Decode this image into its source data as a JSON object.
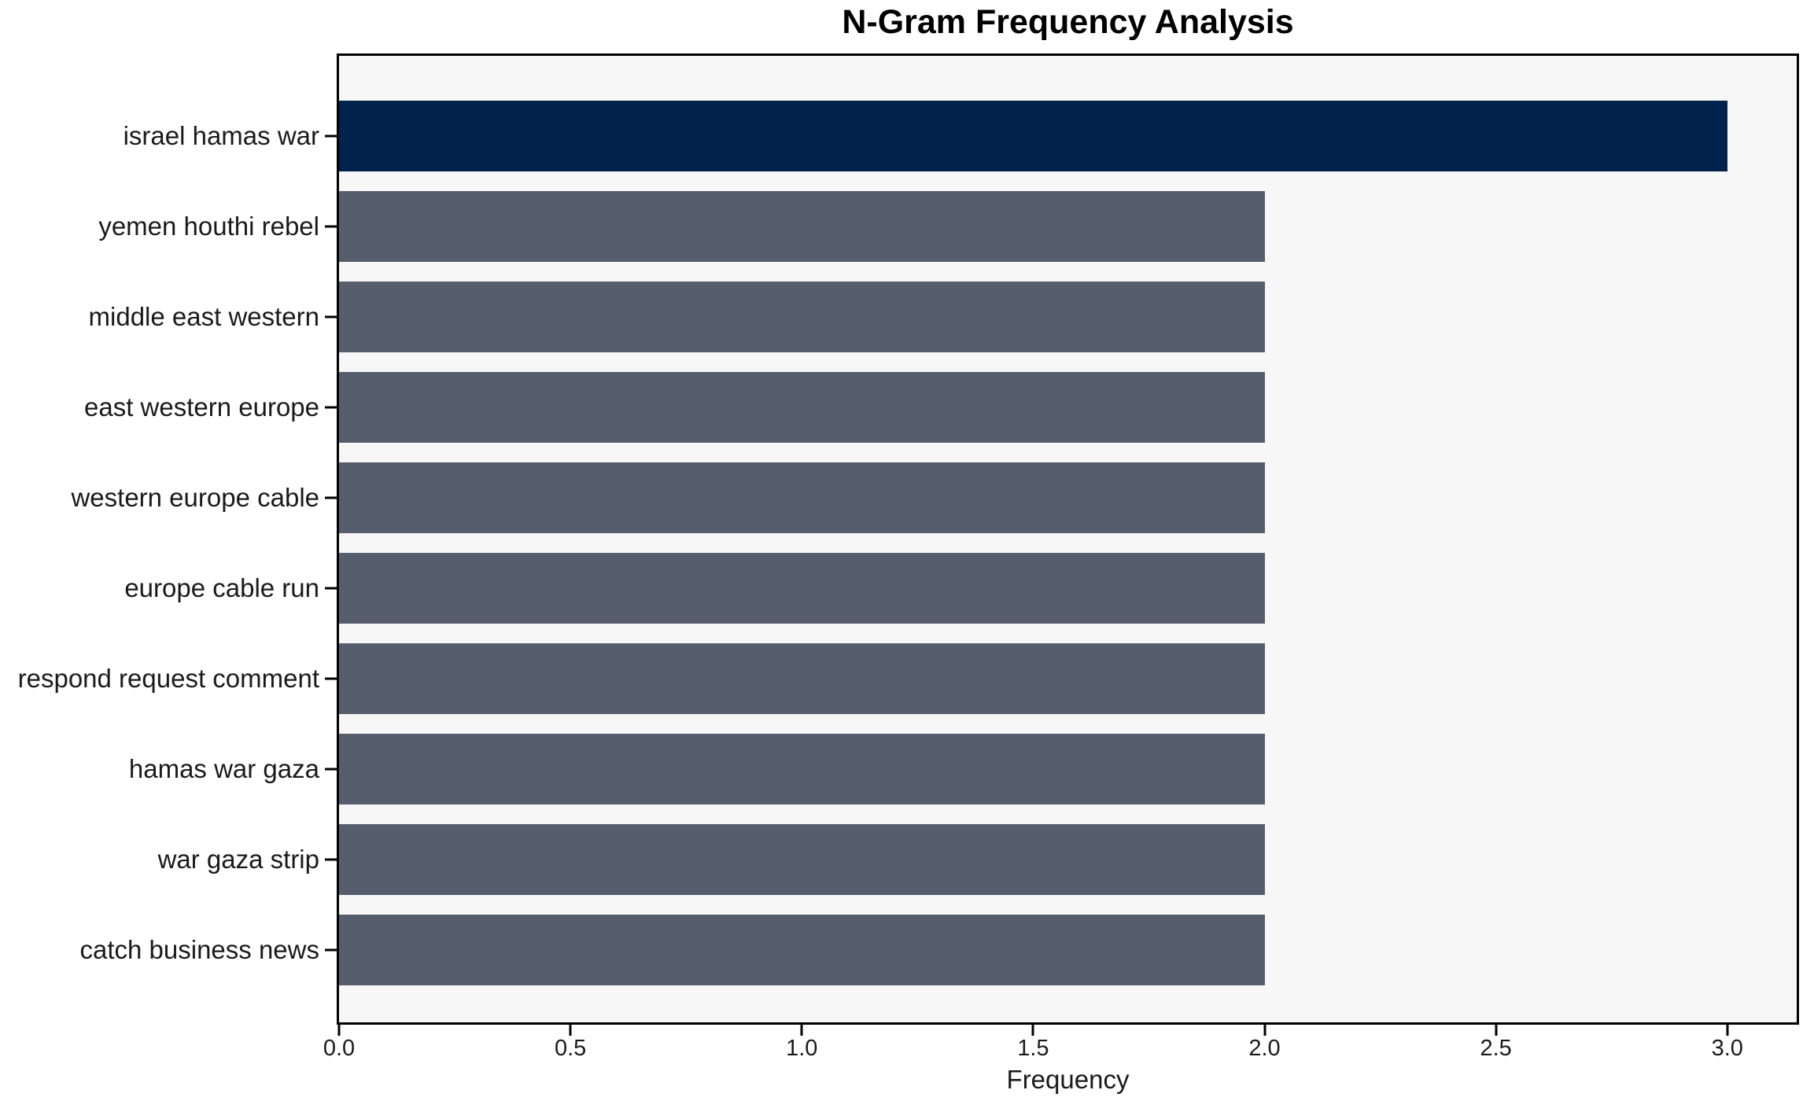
{
  "chart_data": {
    "type": "bar",
    "orientation": "horizontal",
    "title": "N-Gram Frequency Analysis",
    "xlabel": "Frequency",
    "ylabel": "",
    "categories": [
      "israel hamas war",
      "yemen houthi rebel",
      "middle east western",
      "east western europe",
      "western europe cable",
      "europe cable run",
      "respond request comment",
      "hamas war gaza",
      "war gaza strip",
      "catch business news"
    ],
    "values": [
      3,
      2,
      2,
      2,
      2,
      2,
      2,
      2,
      2,
      2
    ],
    "bar_colors": [
      "#00224D",
      "#565D6D",
      "#565D6D",
      "#565D6D",
      "#565D6D",
      "#565D6D",
      "#565D6D",
      "#565D6D",
      "#565D6D",
      "#565D6D"
    ],
    "x_ticks": [
      "0.0",
      "0.5",
      "1.0",
      "1.5",
      "2.0",
      "2.5",
      "3.0"
    ],
    "x_tick_values": [
      0,
      0.5,
      1,
      1.5,
      2,
      2.5,
      3
    ],
    "xlim": [
      0,
      3.15
    ],
    "grid": "off",
    "legend": "none",
    "colors": {
      "highlight_bar": "#00224D",
      "default_bar": "#565D6D",
      "plot_background": "#F7F7F8",
      "figure_background": "#FFFFFF",
      "spine": "#000000",
      "text": "#1A1A1A"
    }
  }
}
